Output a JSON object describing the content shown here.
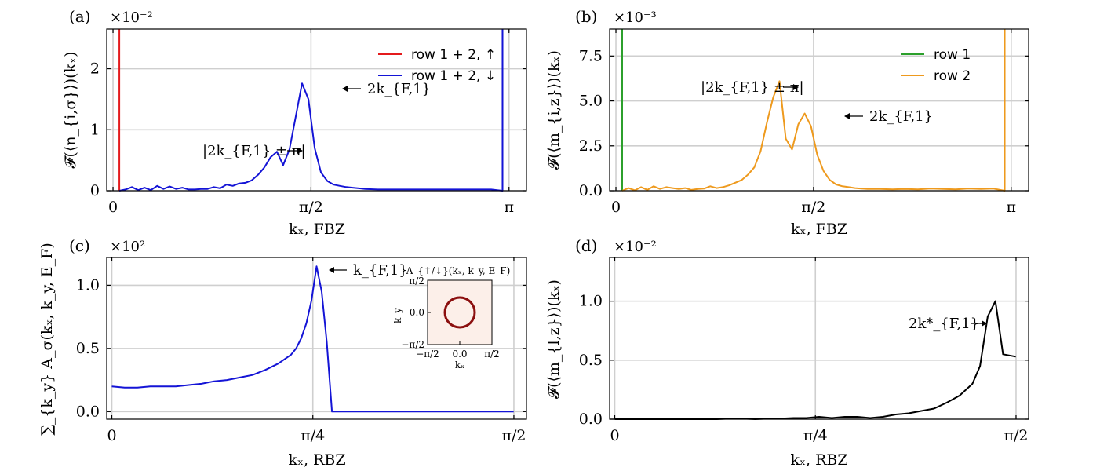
{
  "chart_data": [
    {
      "panel": "(a)",
      "type": "line",
      "multiplier": "×10⁻²",
      "xlabel": "kₓ, FBZ",
      "ylabel": "𝓕(⟨n_{i,σ}⟩)(kₓ)",
      "xlim": [
        -0.05,
        3.28
      ],
      "ylim": [
        0,
        2.65
      ],
      "xticks": [
        0,
        1.5708,
        3.1416
      ],
      "xticklabels": [
        "0",
        "π/2",
        "π"
      ],
      "yticks": [
        0,
        1,
        2
      ],
      "yticklabels": [
        "0",
        "1",
        "2"
      ],
      "grid": true,
      "legend_position": "top-right",
      "series": [
        {
          "name": "row 1 + 2, ↑",
          "color": "#e41a1c",
          "x": [
            0.05,
            0.05
          ],
          "y": [
            0,
            2.65
          ]
        },
        {
          "name": "row 1 + 2, ↓",
          "color": "#1414d6",
          "x": [
            0.05,
            0.1,
            0.15,
            0.2,
            0.25,
            0.3,
            0.35,
            0.4,
            0.45,
            0.5,
            0.55,
            0.6,
            0.65,
            0.7,
            0.75,
            0.8,
            0.85,
            0.9,
            0.95,
            1.0,
            1.05,
            1.1,
            1.15,
            1.2,
            1.25,
            1.3,
            1.35,
            1.4,
            1.45,
            1.5,
            1.55,
            1.6,
            1.65,
            1.7,
            1.75,
            1.8,
            1.85,
            1.9,
            1.95,
            2.0,
            2.1,
            2.2,
            2.3,
            2.4,
            2.5,
            2.6,
            2.7,
            2.8,
            2.9,
            3.0,
            3.09,
            3.09
          ],
          "y": [
            0,
            0.02,
            0.06,
            0.01,
            0.05,
            0.01,
            0.08,
            0.03,
            0.07,
            0.03,
            0.05,
            0.02,
            0.02,
            0.03,
            0.03,
            0.06,
            0.04,
            0.1,
            0.08,
            0.12,
            0.13,
            0.17,
            0.26,
            0.38,
            0.55,
            0.64,
            0.42,
            0.68,
            1.22,
            1.76,
            1.5,
            0.7,
            0.3,
            0.16,
            0.1,
            0.08,
            0.06,
            0.05,
            0.04,
            0.03,
            0.02,
            0.02,
            0.02,
            0.02,
            0.02,
            0.02,
            0.02,
            0.02,
            0.02,
            0.02,
            0,
            2.65
          ]
        }
      ],
      "annotations": [
        {
          "text": "2k_{F,1}",
          "x": 1.5,
          "y": 1.65,
          "arrow": "left"
        },
        {
          "text": "|2k_{F,1} ± π|",
          "x": 1.36,
          "y": 0.62,
          "arrow": "right"
        }
      ]
    },
    {
      "panel": "(b)",
      "type": "line",
      "multiplier": "×10⁻³",
      "xlabel": "kₓ, FBZ",
      "ylabel": "𝓕(⟨m_{i,z}⟩)(kₓ)",
      "xlim": [
        -0.05,
        3.28
      ],
      "ylim": [
        0,
        9.0
      ],
      "xticks": [
        0,
        1.5708,
        3.1416
      ],
      "xticklabels": [
        "0",
        "π/2",
        "π"
      ],
      "yticks": [
        0,
        2.5,
        5,
        7.5
      ],
      "yticklabels": [
        "0.0",
        "2.5",
        "5.0",
        "7.5"
      ],
      "grid": true,
      "legend_position": "top-right",
      "series": [
        {
          "name": "row 1",
          "color": "#2ca02c",
          "x": [
            0.05,
            0.05
          ],
          "y": [
            0,
            9.0
          ]
        },
        {
          "name": "row 2",
          "color": "#ee9a1e",
          "x": [
            0.05,
            0.1,
            0.15,
            0.2,
            0.25,
            0.3,
            0.35,
            0.4,
            0.45,
            0.5,
            0.55,
            0.6,
            0.65,
            0.7,
            0.75,
            0.8,
            0.85,
            0.9,
            0.95,
            1.0,
            1.05,
            1.1,
            1.15,
            1.2,
            1.25,
            1.3,
            1.35,
            1.4,
            1.45,
            1.5,
            1.55,
            1.6,
            1.65,
            1.7,
            1.75,
            1.8,
            1.85,
            1.9,
            1.95,
            2.0,
            2.1,
            2.2,
            2.3,
            2.4,
            2.5,
            2.6,
            2.7,
            2.8,
            2.9,
            3.0,
            3.09,
            3.09
          ],
          "y": [
            0,
            0.15,
            0.02,
            0.2,
            0.05,
            0.25,
            0.1,
            0.2,
            0.15,
            0.1,
            0.15,
            0.05,
            0.1,
            0.12,
            0.25,
            0.15,
            0.2,
            0.3,
            0.45,
            0.6,
            0.9,
            1.3,
            2.2,
            3.8,
            5.2,
            6.1,
            2.9,
            2.3,
            3.7,
            4.3,
            3.6,
            2.0,
            1.1,
            0.6,
            0.35,
            0.25,
            0.2,
            0.15,
            0.12,
            0.1,
            0.1,
            0.08,
            0.1,
            0.08,
            0.12,
            0.1,
            0.08,
            0.12,
            0.1,
            0.12,
            0,
            9.0
          ]
        }
      ],
      "annotations": [
        {
          "text": "|2k_{F,1} ± π|",
          "x": 1.42,
          "y": 5.7,
          "arrow": "right"
        },
        {
          "text": "2k_{F,1}",
          "x": 1.72,
          "y": 4.1,
          "arrow": "left"
        }
      ]
    },
    {
      "panel": "(c)",
      "type": "line",
      "multiplier": "×10²",
      "xlabel": "kₓ, RBZ",
      "ylabel": "∑_{k_y} A_σ(kₓ, k_y, E_F)",
      "xlim": [
        -0.02,
        1.62
      ],
      "ylim": [
        -0.06,
        1.22
      ],
      "xticks": [
        0,
        0.7854,
        1.5708
      ],
      "xticklabels": [
        "0",
        "π/4",
        "π/2"
      ],
      "yticks": [
        0,
        0.5,
        1.0
      ],
      "yticklabels": [
        "0.0",
        "0.5",
        "1.0"
      ],
      "grid": true,
      "series": [
        {
          "name": "",
          "color": "#1414d6",
          "x": [
            0,
            0.05,
            0.1,
            0.15,
            0.2,
            0.25,
            0.3,
            0.35,
            0.4,
            0.45,
            0.5,
            0.55,
            0.6,
            0.65,
            0.7,
            0.72,
            0.74,
            0.76,
            0.78,
            0.8,
            0.82,
            0.84,
            0.86,
            0.88,
            0.9,
            1.0,
            1.2,
            1.4,
            1.57
          ],
          "y": [
            0.2,
            0.19,
            0.19,
            0.2,
            0.2,
            0.2,
            0.21,
            0.22,
            0.24,
            0.25,
            0.27,
            0.29,
            0.33,
            0.38,
            0.45,
            0.5,
            0.58,
            0.7,
            0.88,
            1.15,
            0.95,
            0.55,
            0.0,
            0.0,
            0.0,
            0.0,
            0.0,
            0.0,
            0.0
          ]
        }
      ],
      "annotations": [
        {
          "text": "k_{F,1}",
          "x": 0.83,
          "y": 1.1,
          "arrow": "left"
        }
      ],
      "inset": {
        "title": "A_{↑/↓}(kₓ, k_y, E_F)",
        "xlabel": "kₓ",
        "ylabel": "k_y",
        "ticks": [
          "−π/2",
          "0.0",
          "π/2"
        ],
        "background": "#fcefe9",
        "ring_color": "#8b0f0f",
        "ring_radius": 0.69
      }
    },
    {
      "panel": "(d)",
      "type": "line",
      "multiplier": "×10⁻²",
      "xlabel": "kₓ, RBZ",
      "ylabel": "𝓕(⟨m_{l,z}⟩)(kₓ)",
      "xlim": [
        -0.02,
        1.62
      ],
      "ylim": [
        0,
        1.37
      ],
      "xticks": [
        0,
        0.7854,
        1.5708
      ],
      "xticklabels": [
        "0",
        "π/4",
        "π/2"
      ],
      "yticks": [
        0,
        0.5,
        1.0
      ],
      "yticklabels": [
        "0.0",
        "0.5",
        "1.0"
      ],
      "grid": true,
      "series": [
        {
          "name": "",
          "color": "#000000",
          "x": [
            0,
            0.05,
            0.1,
            0.15,
            0.2,
            0.25,
            0.3,
            0.35,
            0.4,
            0.45,
            0.5,
            0.55,
            0.6,
            0.65,
            0.7,
            0.75,
            0.8,
            0.85,
            0.9,
            0.95,
            1.0,
            1.05,
            1.1,
            1.15,
            1.2,
            1.25,
            1.3,
            1.35,
            1.4,
            1.43,
            1.46,
            1.49,
            1.52,
            1.57
          ],
          "y": [
            0,
            0,
            0,
            0,
            0,
            0,
            0,
            0,
            0,
            0.005,
            0.005,
            0,
            0.005,
            0.005,
            0.01,
            0.01,
            0.02,
            0.01,
            0.02,
            0.02,
            0.01,
            0.02,
            0.04,
            0.05,
            0.07,
            0.09,
            0.14,
            0.2,
            0.3,
            0.45,
            0.87,
            1.0,
            0.55,
            0.53
          ]
        }
      ],
      "annotations": [
        {
          "text": "2k*_{F,1}",
          "x": 1.42,
          "y": 0.88,
          "arrow": "right"
        }
      ]
    }
  ]
}
